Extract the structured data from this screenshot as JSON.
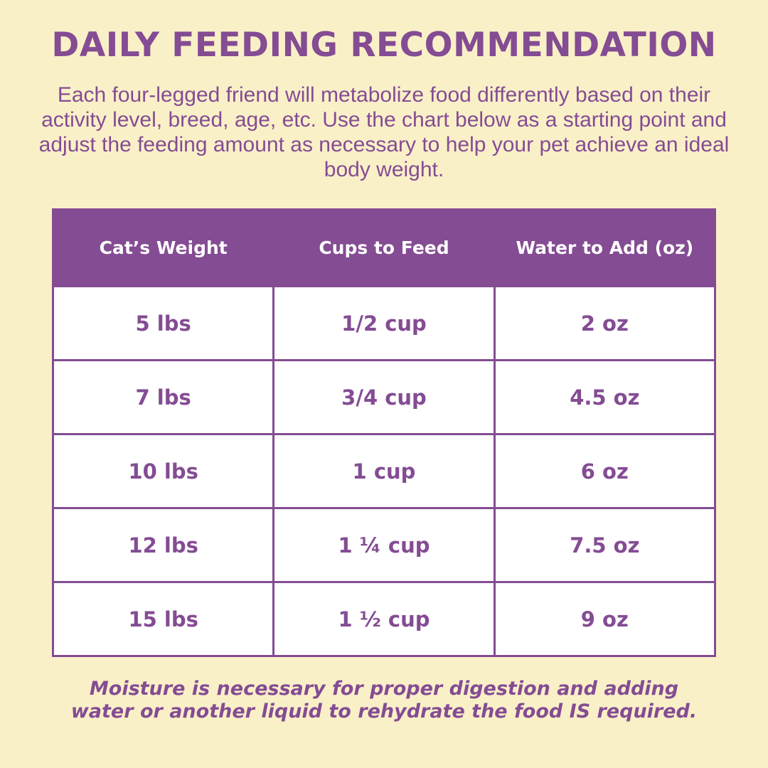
{
  "title": "DAILY FEEDING RECOMMENDATION",
  "intro": "Each four-legged friend will metabolize food differently based on their activity level, breed, age, etc. Use the chart below as a starting point and adjust the feeding amount as necessary to help your pet achieve an ideal body weight.",
  "table": {
    "headers": [
      "Cat’s Weight",
      "Cups to Feed",
      "Water to Add (oz)"
    ],
    "rows": [
      [
        "5 lbs",
        "1/2 cup",
        "2 oz"
      ],
      [
        "7 lbs",
        "3/4 cup",
        "4.5 oz"
      ],
      [
        "10 lbs",
        "1 cup",
        "6 oz"
      ],
      [
        "12 lbs",
        "1 ¼ cup",
        "7.5 oz"
      ],
      [
        "15 lbs",
        "1 ½ cup",
        "9 oz"
      ]
    ]
  },
  "note_line1": "Moisture is necessary for proper digestion and adding",
  "note_line2": "water or another liquid to rehydrate the food IS required.",
  "colors": {
    "background": "#faf0c8",
    "accent": "#844c93",
    "cell_background": "#ffffff"
  }
}
